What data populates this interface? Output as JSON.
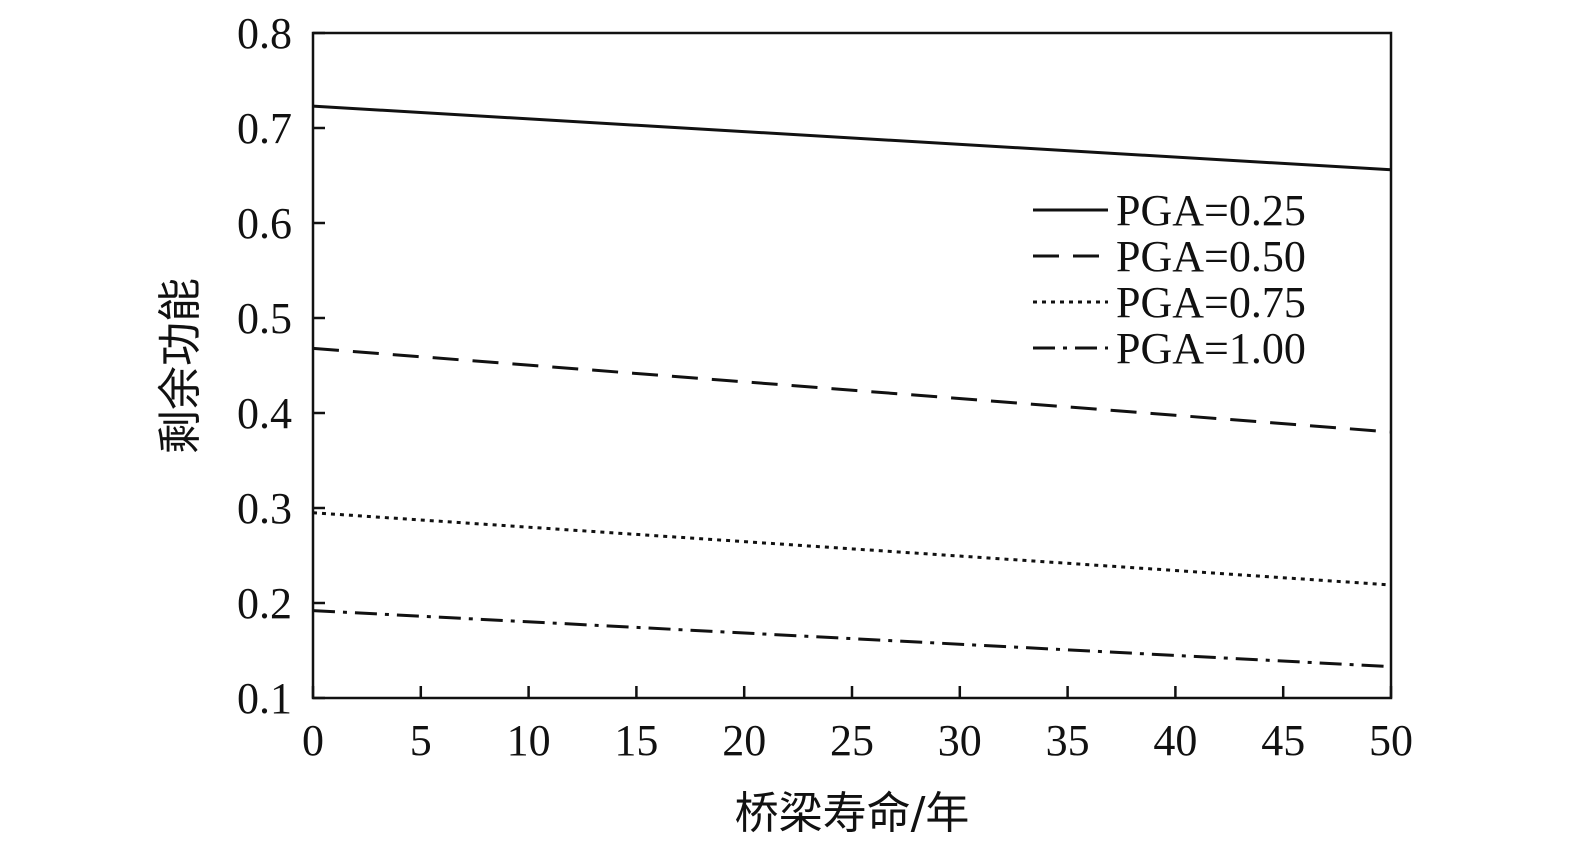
{
  "chart_data": {
    "type": "line",
    "xlabel": "桥梁寿命/年",
    "ylabel": "剩余功能",
    "xlim": [
      0,
      50
    ],
    "ylim": [
      0.1,
      0.8
    ],
    "x_ticks": [
      0,
      5,
      10,
      15,
      20,
      25,
      30,
      35,
      40,
      45,
      50
    ],
    "y_ticks": [
      "0.1",
      "0.2",
      "0.3",
      "0.4",
      "0.5",
      "0.6",
      "0.7",
      "0.8"
    ],
    "legend_position": "top-right",
    "grid": false,
    "series": [
      {
        "name": "PGA=0.25",
        "style": "solid",
        "x": [
          0,
          50
        ],
        "y": [
          0.723,
          0.656
        ]
      },
      {
        "name": "PGA=0.50",
        "style": "dashed",
        "x": [
          0,
          50
        ],
        "y": [
          0.468,
          0.38
        ]
      },
      {
        "name": "PGA=0.75",
        "style": "dotted",
        "x": [
          0,
          50
        ],
        "y": [
          0.295,
          0.219
        ]
      },
      {
        "name": "PGA=1.00",
        "style": "dashdot",
        "x": [
          0,
          50
        ],
        "y": [
          0.192,
          0.133
        ]
      }
    ]
  }
}
